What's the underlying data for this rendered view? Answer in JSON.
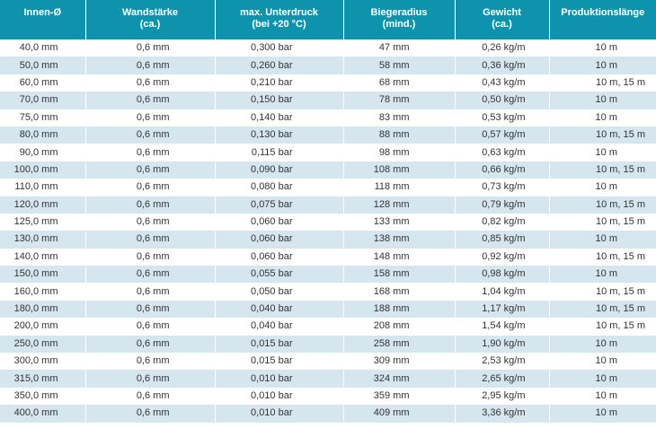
{
  "table": {
    "headers": [
      {
        "line1": "Innen-Ø",
        "line2": ""
      },
      {
        "line1": "Wandstärke",
        "line2": "(ca.)"
      },
      {
        "line1": "max. Unterdruck",
        "line2": "(bei +20 °C)"
      },
      {
        "line1": "Biegeradius",
        "line2": "(mind.)"
      },
      {
        "line1": "Gewicht",
        "line2": "(ca.)"
      },
      {
        "line1": "Produktionslänge",
        "line2": ""
      }
    ],
    "rows": [
      [
        "40,0 mm",
        "0,6 mm",
        "0,300 bar",
        "47 mm",
        "0,26 kg/m",
        "10 m"
      ],
      [
        "50,0 mm",
        "0,6 mm",
        "0,260 bar",
        "58 mm",
        "0,36 kg/m",
        "10 m"
      ],
      [
        "60,0 mm",
        "0,6 mm",
        "0,210 bar",
        "68 mm",
        "0,43 kg/m",
        "10 m, 15 m"
      ],
      [
        "70,0 mm",
        "0,6 mm",
        "0,150 bar",
        "78 mm",
        "0,50 kg/m",
        "10 m"
      ],
      [
        "75,0 mm",
        "0,6 mm",
        "0,140 bar",
        "83 mm",
        "0,53 kg/m",
        "10 m"
      ],
      [
        "80,0 mm",
        "0,6 mm",
        "0,130 bar",
        "88 mm",
        "0,57 kg/m",
        "10 m, 15 m"
      ],
      [
        "90,0 mm",
        "0,6 mm",
        "0,115 bar",
        "98 mm",
        "0,63 kg/m",
        "10 m"
      ],
      [
        "100,0 mm",
        "0,6 mm",
        "0,090 bar",
        "108 mm",
        "0,66 kg/m",
        "10 m, 15 m"
      ],
      [
        "110,0 mm",
        "0,6 mm",
        "0,080 bar",
        "118 mm",
        "0,73 kg/m",
        "10 m"
      ],
      [
        "120,0 mm",
        "0,6 mm",
        "0,075 bar",
        "128 mm",
        "0,79 kg/m",
        "10 m, 15 m"
      ],
      [
        "125,0 mm",
        "0,6 mm",
        "0,060 bar",
        "133 mm",
        "0,82 kg/m",
        "10 m, 15 m"
      ],
      [
        "130,0 mm",
        "0,6 mm",
        "0,060 bar",
        "138 mm",
        "0,85 kg/m",
        "10 m"
      ],
      [
        "140,0 mm",
        "0,6 mm",
        "0,060 bar",
        "148 mm",
        "0,92 kg/m",
        "10 m, 15 m"
      ],
      [
        "150,0 mm",
        "0,6 mm",
        "0,055 bar",
        "158 mm",
        "0,98 kg/m",
        "10 m"
      ],
      [
        "160,0 mm",
        "0,6 mm",
        "0,050 bar",
        "168 mm",
        "1,04 kg/m",
        "10 m, 15 m"
      ],
      [
        "180,0 mm",
        "0,6 mm",
        "0,040 bar",
        "188 mm",
        "1,17 kg/m",
        "10 m, 15 m"
      ],
      [
        "200,0 mm",
        "0,6 mm",
        "0,040 bar",
        "208 mm",
        "1,54 kg/m",
        "10 m, 15 m"
      ],
      [
        "250,0 mm",
        "0,6 mm",
        "0,015 bar",
        "258 mm",
        "1,90 kg/m",
        "10 m"
      ],
      [
        "300,0 mm",
        "0,6 mm",
        "0,015 bar",
        "309 mm",
        "2,53 kg/m",
        "10 m"
      ],
      [
        "315,0 mm",
        "0,6 mm",
        "0,010 bar",
        "324 mm",
        "2,65 kg/m",
        "10 m"
      ],
      [
        "350,0 mm",
        "0,6 mm",
        "0,010 bar",
        "359 mm",
        "2,95 kg/m",
        "10 m"
      ],
      [
        "400,0 mm",
        "0,6 mm",
        "0,010 bar",
        "409 mm",
        "3,36 kg/m",
        "10 m"
      ]
    ]
  },
  "colors": {
    "header_bg": "#0e93ad",
    "header_text": "#ffffff",
    "row_alt_bg": "#d5e6ee",
    "row_bg": "#ffffff",
    "cell_text": "#333333"
  }
}
